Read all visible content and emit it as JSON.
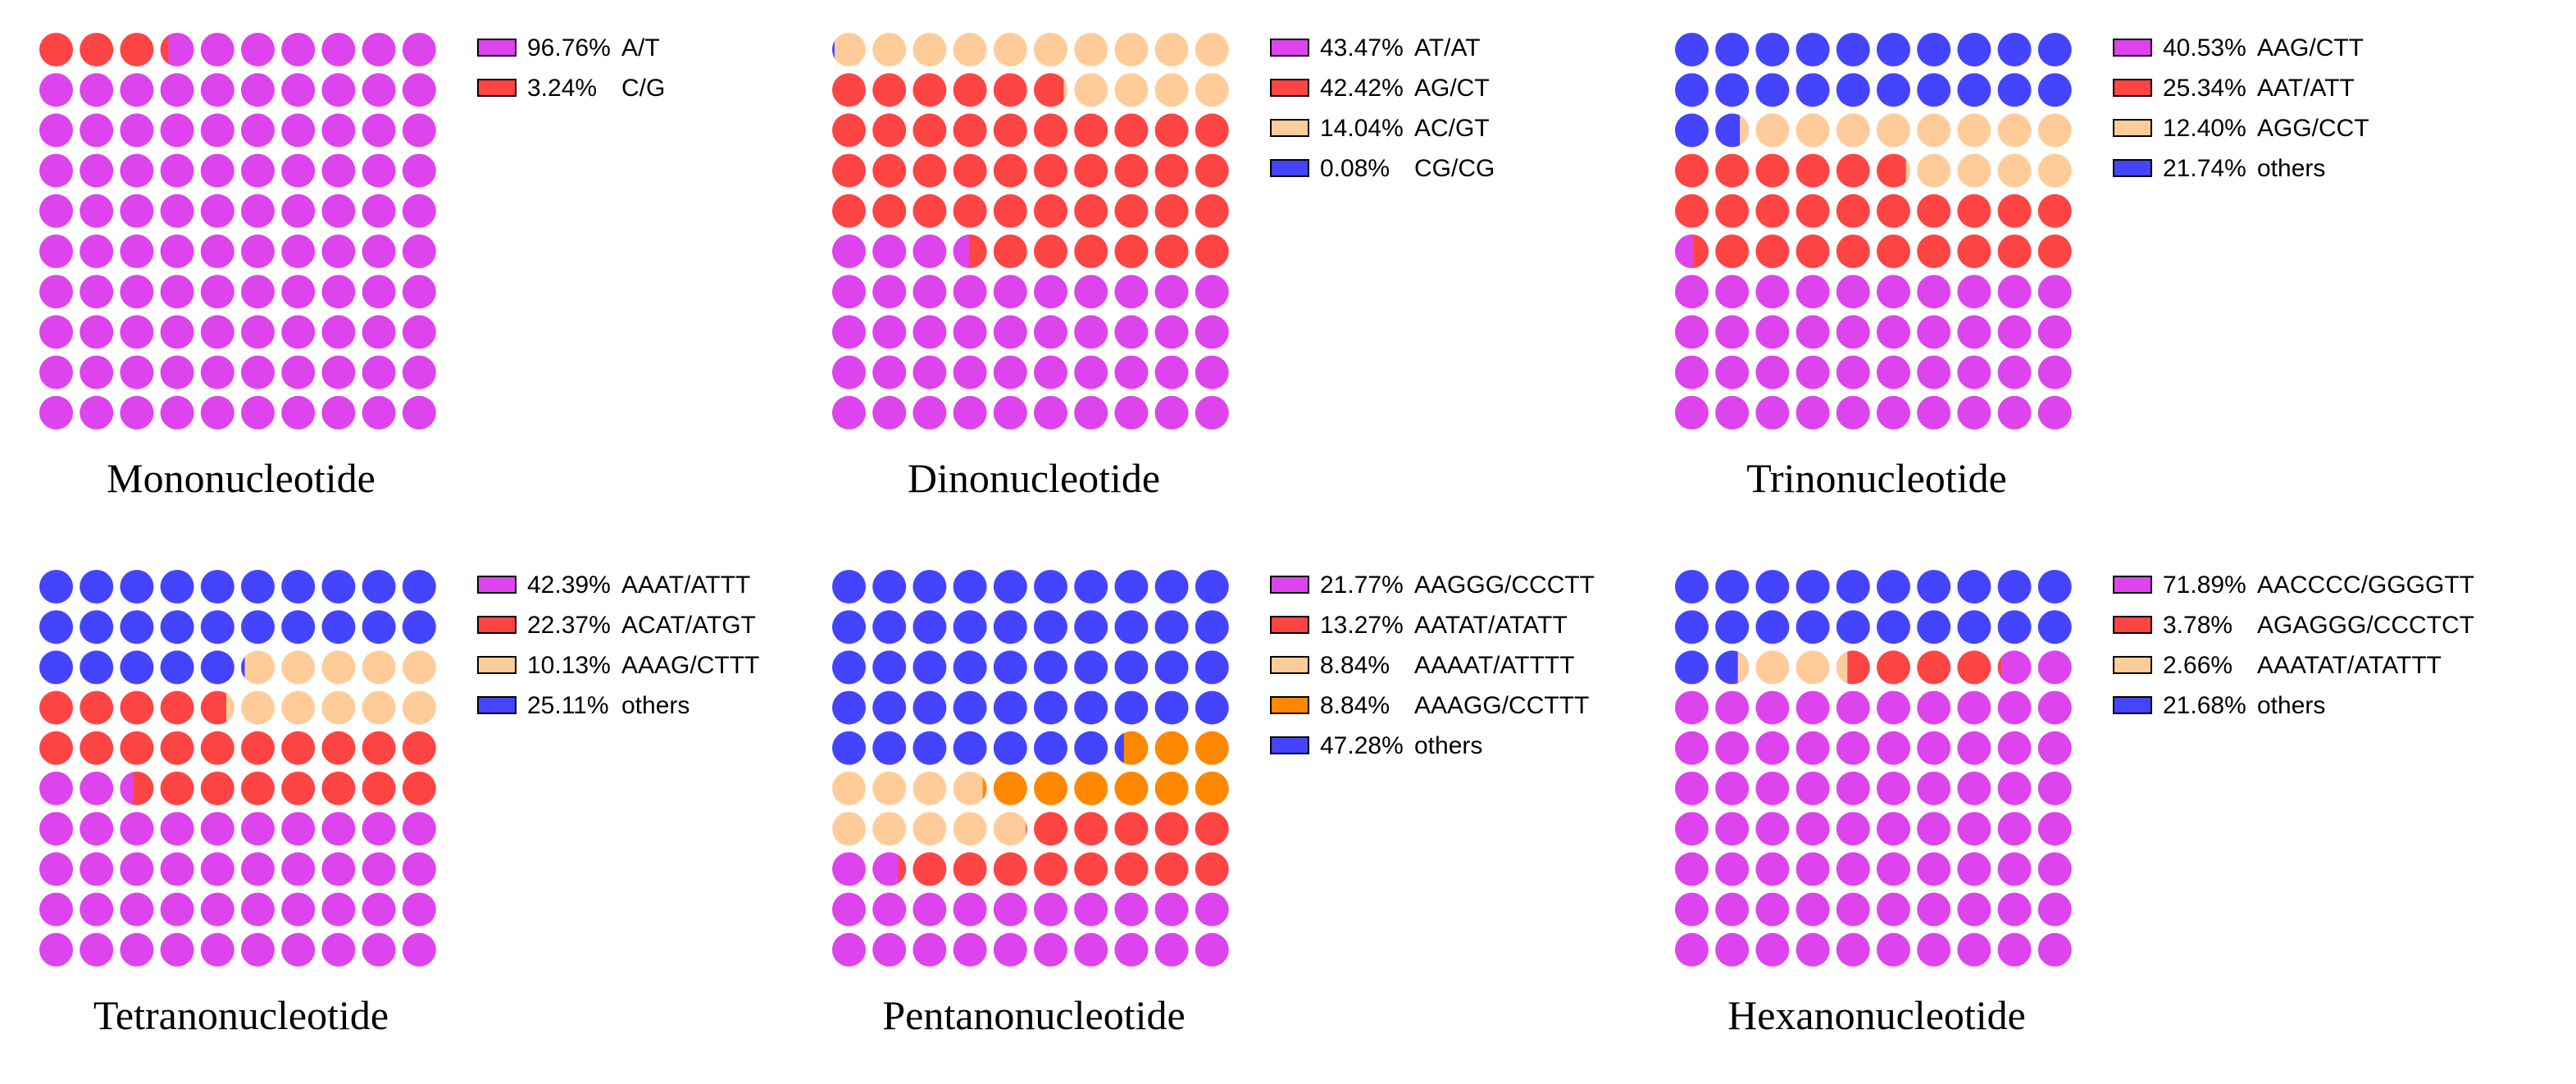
{
  "chart_data": [
    {
      "type": "waffle",
      "title": "Mononucleotide",
      "categories": [
        "A/T",
        "C/G"
      ],
      "values": [
        96.76,
        3.24
      ],
      "value_labels": [
        "96.76%",
        "3.24%"
      ],
      "colors": [
        "#dd44ee",
        "#ff4444"
      ]
    },
    {
      "type": "waffle",
      "title": "Dinonucleotide",
      "categories": [
        "AT/AT",
        "AG/CT",
        "AC/GT",
        "CG/CG"
      ],
      "values": [
        43.47,
        42.42,
        14.04,
        0.08
      ],
      "value_labels": [
        "43.47%",
        "42.42%",
        "14.04%",
        "0.08%"
      ],
      "colors": [
        "#dd44ee",
        "#ff4444",
        "#ffcc99",
        "#4444ff"
      ]
    },
    {
      "type": "waffle",
      "title": "Trinonucleotide",
      "categories": [
        "AAG/CTT",
        "AAT/ATT",
        "AGG/CCT",
        "others"
      ],
      "values": [
        40.53,
        25.34,
        12.4,
        21.74
      ],
      "value_labels": [
        "40.53%",
        "25.34%",
        "12.40%",
        "21.74%"
      ],
      "colors": [
        "#dd44ee",
        "#ff4444",
        "#ffcc99",
        "#4444ff"
      ]
    },
    {
      "type": "waffle",
      "title": "Tetranonucleotide",
      "categories": [
        "AAAT/ATTT",
        "ACAT/ATGT",
        "AAAG/CTTT",
        "others"
      ],
      "values": [
        42.39,
        22.37,
        10.13,
        25.11
      ],
      "value_labels": [
        "42.39%",
        "22.37%",
        "10.13%",
        "25.11%"
      ],
      "colors": [
        "#dd44ee",
        "#ff4444",
        "#ffcc99",
        "#4444ff"
      ]
    },
    {
      "type": "waffle",
      "title": "Pentanonucleotide",
      "categories": [
        "AAGGG/CCCTT",
        "AATAT/ATATT",
        "AAAAT/ATTTT",
        "AAAGG/CCTTT",
        "others"
      ],
      "values": [
        21.77,
        13.27,
        8.84,
        8.84,
        47.28
      ],
      "value_labels": [
        "21.77%",
        "13.27%",
        "8.84%",
        "8.84%",
        "47.28%"
      ],
      "colors": [
        "#dd44ee",
        "#ff4444",
        "#ffcc99",
        "#ff8800",
        "#4444ff"
      ]
    },
    {
      "type": "waffle",
      "title": "Hexanonucleotide",
      "categories": [
        "AACCCC/GGGGTT",
        "AGAGGG/CCCTCT",
        "AAATAT/ATATTT",
        "others"
      ],
      "values": [
        71.89,
        3.78,
        2.66,
        21.68
      ],
      "value_labels": [
        "71.89%",
        "3.78%",
        "2.66%",
        "21.68%"
      ],
      "colors": [
        "#dd44ee",
        "#ff4444",
        "#ffcc99",
        "#4444ff"
      ]
    }
  ]
}
